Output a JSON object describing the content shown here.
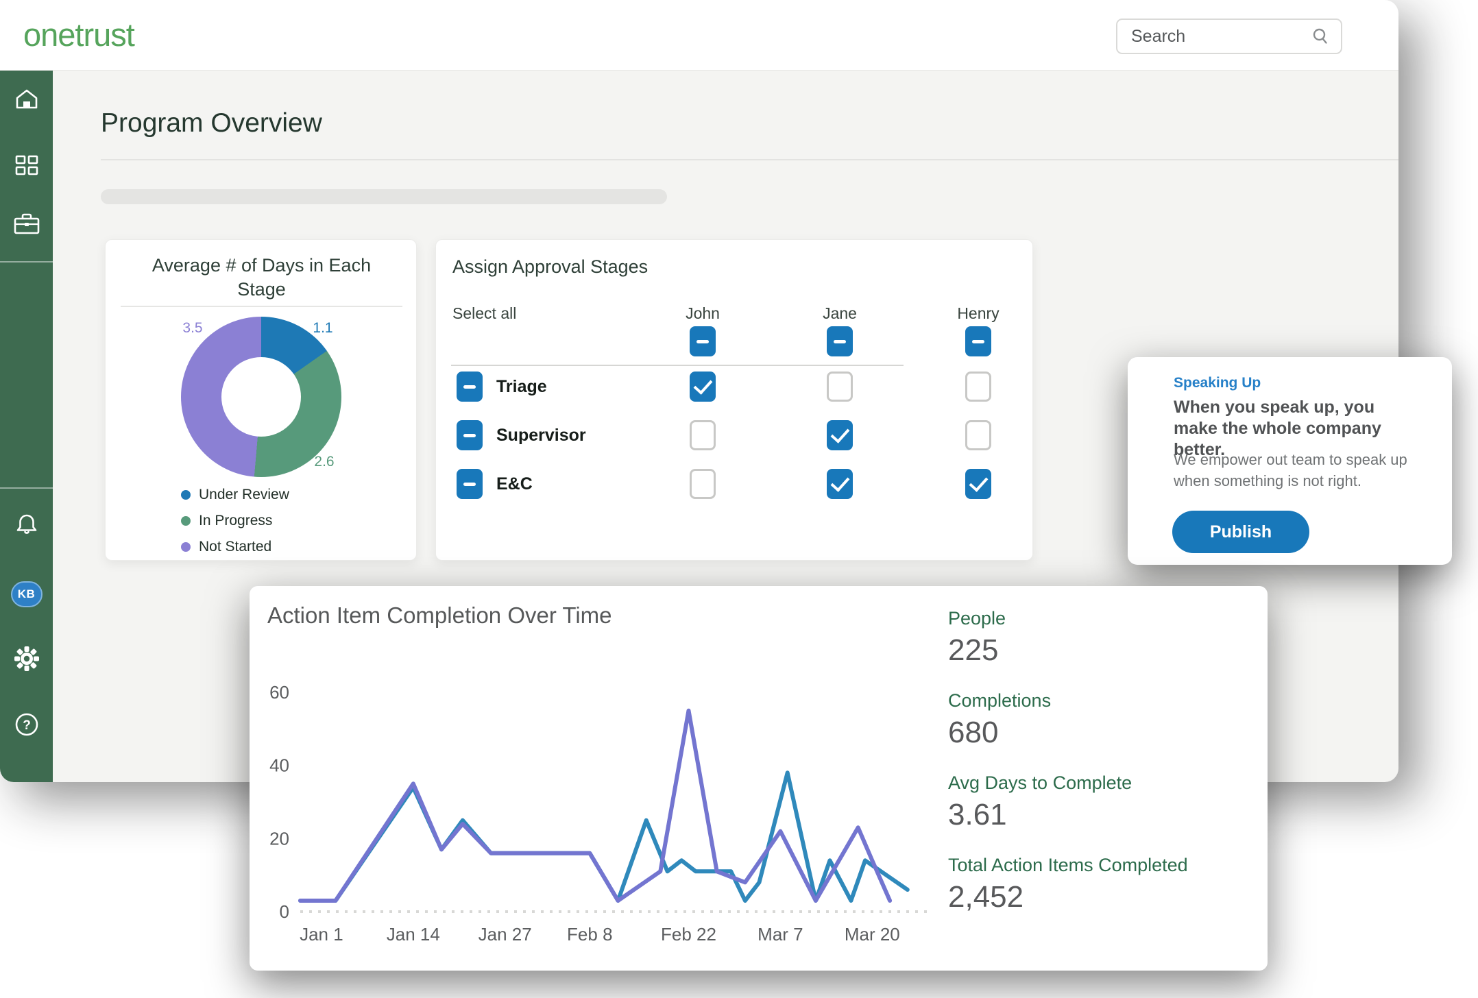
{
  "brand": {
    "logo_text": "onetrust",
    "logo_color": "#56a45c"
  },
  "topbar": {
    "search_placeholder": "Search"
  },
  "sidebar": {
    "icons": [
      "home-icon",
      "apps-grid-icon",
      "briefcase-icon",
      "bell-icon",
      "avatar-kb",
      "settings-gear-icon",
      "help-icon"
    ],
    "avatar_initials": "KB",
    "background_color": "#3e6b50"
  },
  "page": {
    "title": "Program Overview"
  },
  "donut_card": {
    "title_line1": "Average # of Days in Each",
    "title_line2": "Stage"
  },
  "approval_card": {
    "title": "Assign Approval Stages",
    "select_all_label": "Select all",
    "columns": [
      "John",
      "Jane",
      "Henry"
    ],
    "header_states": [
      "indeterminate",
      "indeterminate",
      "indeterminate"
    ],
    "rows": [
      {
        "label": "Triage",
        "lead_state": "indeterminate",
        "cells": [
          "checked",
          "unchecked",
          "unchecked"
        ]
      },
      {
        "label": "Supervisor",
        "lead_state": "indeterminate",
        "cells": [
          "unchecked",
          "checked",
          "unchecked"
        ]
      },
      {
        "label": "E&C",
        "lead_state": "indeterminate",
        "cells": [
          "unchecked",
          "checked",
          "checked"
        ]
      }
    ],
    "checkbox_color": "#1878ba"
  },
  "speaking_card": {
    "tag": "Speaking Up",
    "heading": "When you speak up, you make the whole company better.",
    "body": "We empower out team to speak up when something is not right.",
    "button_label": "Publish",
    "accent_color": "#2680c8"
  },
  "chart_card": {
    "stats": [
      {
        "label": "People",
        "value": "225"
      },
      {
        "label": "Completions",
        "value": "680"
      },
      {
        "label": "Avg Days to Complete",
        "value": "3.61"
      },
      {
        "label": "Total Action Items Completed",
        "value": "2,452"
      }
    ]
  },
  "chart_data": [
    {
      "id": "stage-donut",
      "type": "pie",
      "donut": true,
      "title": "Average # of Days in Each Stage",
      "labels": [
        "Under Review",
        "In Progress",
        "Not Started"
      ],
      "values": [
        1.1,
        2.6,
        3.5
      ],
      "colors": [
        "#1e79b5",
        "#579a7b",
        "#8b80d4"
      ],
      "legend_position": "bottom-left"
    },
    {
      "id": "completion-line",
      "type": "line",
      "title": "Action Item Completion Over Time",
      "xlabel": "",
      "ylabel": "",
      "ylim": [
        0,
        60
      ],
      "yticks": [
        0,
        20,
        40,
        60
      ],
      "grid": false,
      "zero_line_style": "dotted",
      "x_unit": "days from Jan 1",
      "x_ticks": [
        {
          "label": "Jan 1",
          "day": 0
        },
        {
          "label": "Jan 14",
          "day": 13
        },
        {
          "label": "Jan 27",
          "day": 26
        },
        {
          "label": "Feb 8",
          "day": 38
        },
        {
          "label": "Feb 22",
          "day": 52
        },
        {
          "label": "Mar 7",
          "day": 65
        },
        {
          "label": "Mar 20",
          "day": 78
        }
      ],
      "series": [
        {
          "name": "completions",
          "color": "#2f89bb",
          "points": [
            [
              -3,
              3
            ],
            [
              2,
              3
            ],
            [
              13,
              34
            ],
            [
              17,
              17
            ],
            [
              20,
              25
            ],
            [
              24,
              16
            ],
            [
              38,
              16
            ],
            [
              42,
              3
            ],
            [
              46,
              25
            ],
            [
              49,
              11
            ],
            [
              51,
              14
            ],
            [
              53,
              11
            ],
            [
              58,
              11
            ],
            [
              60,
              3
            ],
            [
              62,
              8
            ],
            [
              66,
              38
            ],
            [
              70,
              3
            ],
            [
              72,
              14
            ],
            [
              75,
              3
            ],
            [
              77,
              14
            ],
            [
              83,
              6
            ]
          ]
        },
        {
          "name": "action-items",
          "color": "#7375d0",
          "points": [
            [
              -3,
              3
            ],
            [
              2,
              3
            ],
            [
              13,
              35
            ],
            [
              17,
              17
            ],
            [
              20,
              24
            ],
            [
              24,
              16
            ],
            [
              38,
              16
            ],
            [
              42,
              3
            ],
            [
              48,
              11
            ],
            [
              52,
              55
            ],
            [
              56,
              11
            ],
            [
              60,
              8
            ],
            [
              65,
              22
            ],
            [
              70,
              3
            ],
            [
              76,
              23
            ],
            [
              78,
              14
            ],
            [
              80.5,
              3
            ]
          ]
        }
      ]
    }
  ]
}
